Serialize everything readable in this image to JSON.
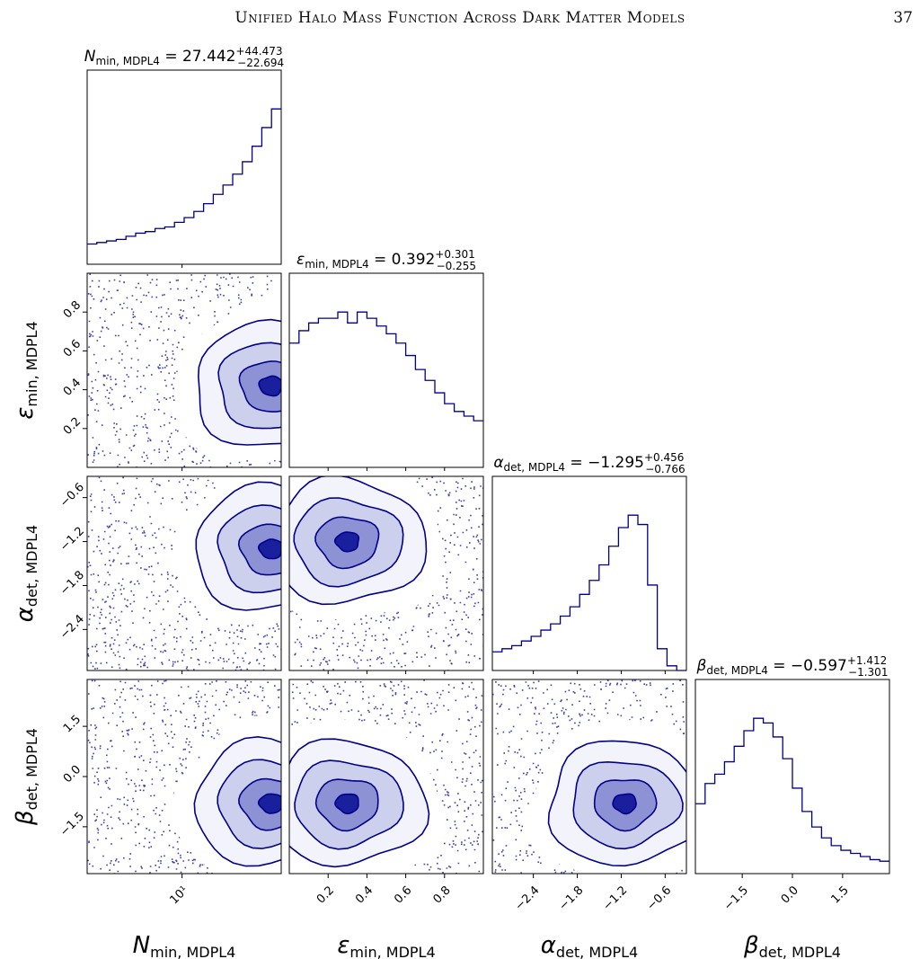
{
  "page": {
    "running_head": "Unified Halo Mass Function Across Dark Matter Models",
    "page_number": "37"
  },
  "chart_data": {
    "type": "corner",
    "color": "#00008b",
    "parameters": [
      {
        "symbol": "N",
        "subscript": "min, MDPL4",
        "median": "27.442",
        "plus": "+44.473",
        "minus": "−22.694"
      },
      {
        "symbol": "ε",
        "subscript": "min, MDPL4",
        "median": "0.392",
        "plus": "+0.301",
        "minus": "−0.255"
      },
      {
        "symbol": "α",
        "subscript": "det, MDPL4",
        "median": "−1.295",
        "plus": "+0.456",
        "minus": "−0.766"
      },
      {
        "symbol": "β",
        "subscript": "det, MDPL4",
        "median": "−0.597",
        "plus": "+1.412",
        "minus": "−1.301"
      }
    ],
    "axes": [
      {
        "scale": "log",
        "range": [
          1.8,
          60
        ],
        "ticks": [
          {
            "value": 10,
            "label": "10¹"
          }
        ]
      },
      {
        "scale": "linear",
        "range": [
          0,
          1
        ],
        "ticks": [
          {
            "value": 0.2,
            "label": "0.2"
          },
          {
            "value": 0.4,
            "label": "0.4"
          },
          {
            "value": 0.6,
            "label": "0.6"
          },
          {
            "value": 0.8,
            "label": "0.8"
          }
        ]
      },
      {
        "scale": "linear",
        "range": [
          -2.96,
          -0.31
        ],
        "ticks": [
          {
            "value": -2.4,
            "label": "−2.4"
          },
          {
            "value": -1.8,
            "label": "−1.8"
          },
          {
            "value": -1.2,
            "label": "−1.2"
          },
          {
            "value": -0.6,
            "label": "−0.6"
          }
        ]
      },
      {
        "scale": "linear",
        "range": [
          -2.9,
          2.9
        ],
        "ticks": [
          {
            "value": -1.5,
            "label": "−1.5"
          },
          {
            "value": 0.0,
            "label": "0.0"
          },
          {
            "value": 1.5,
            "label": "1.5"
          }
        ]
      }
    ],
    "histograms": [
      [
        0.13,
        0.14,
        0.15,
        0.16,
        0.18,
        0.2,
        0.21,
        0.23,
        0.24,
        0.27,
        0.3,
        0.34,
        0.39,
        0.45,
        0.51,
        0.58,
        0.66,
        0.76,
        0.88,
        1.0
      ],
      [
        0.8,
        0.88,
        0.93,
        0.96,
        0.96,
        1.0,
        0.93,
        1.0,
        0.96,
        0.91,
        0.86,
        0.8,
        0.72,
        0.63,
        0.56,
        0.48,
        0.41,
        0.36,
        0.33,
        0.3
      ],
      [
        0.12,
        0.14,
        0.16,
        0.19,
        0.22,
        0.26,
        0.3,
        0.35,
        0.41,
        0.49,
        0.58,
        0.68,
        0.8,
        0.92,
        1.0,
        0.94,
        0.55,
        0.14,
        0.03,
        0.0
      ],
      [
        0.45,
        0.58,
        0.64,
        0.72,
        0.82,
        0.92,
        1.0,
        0.97,
        0.88,
        0.74,
        0.55,
        0.4,
        0.3,
        0.23,
        0.18,
        0.15,
        0.13,
        0.11,
        0.09,
        0.08
      ]
    ],
    "joint_peaks": [
      {
        "row": 1,
        "col": 0,
        "peak": [
          50,
          0.42
        ]
      },
      {
        "row": 2,
        "col": 0,
        "peak": [
          50,
          -1.3
        ]
      },
      {
        "row": 2,
        "col": 1,
        "peak": [
          0.3,
          -1.2
        ]
      },
      {
        "row": 3,
        "col": 0,
        "peak": [
          50,
          -0.8
        ]
      },
      {
        "row": 3,
        "col": 1,
        "peak": [
          0.3,
          -0.8
        ]
      },
      {
        "row": 3,
        "col": 2,
        "peak": [
          -1.15,
          -0.8
        ]
      }
    ]
  }
}
